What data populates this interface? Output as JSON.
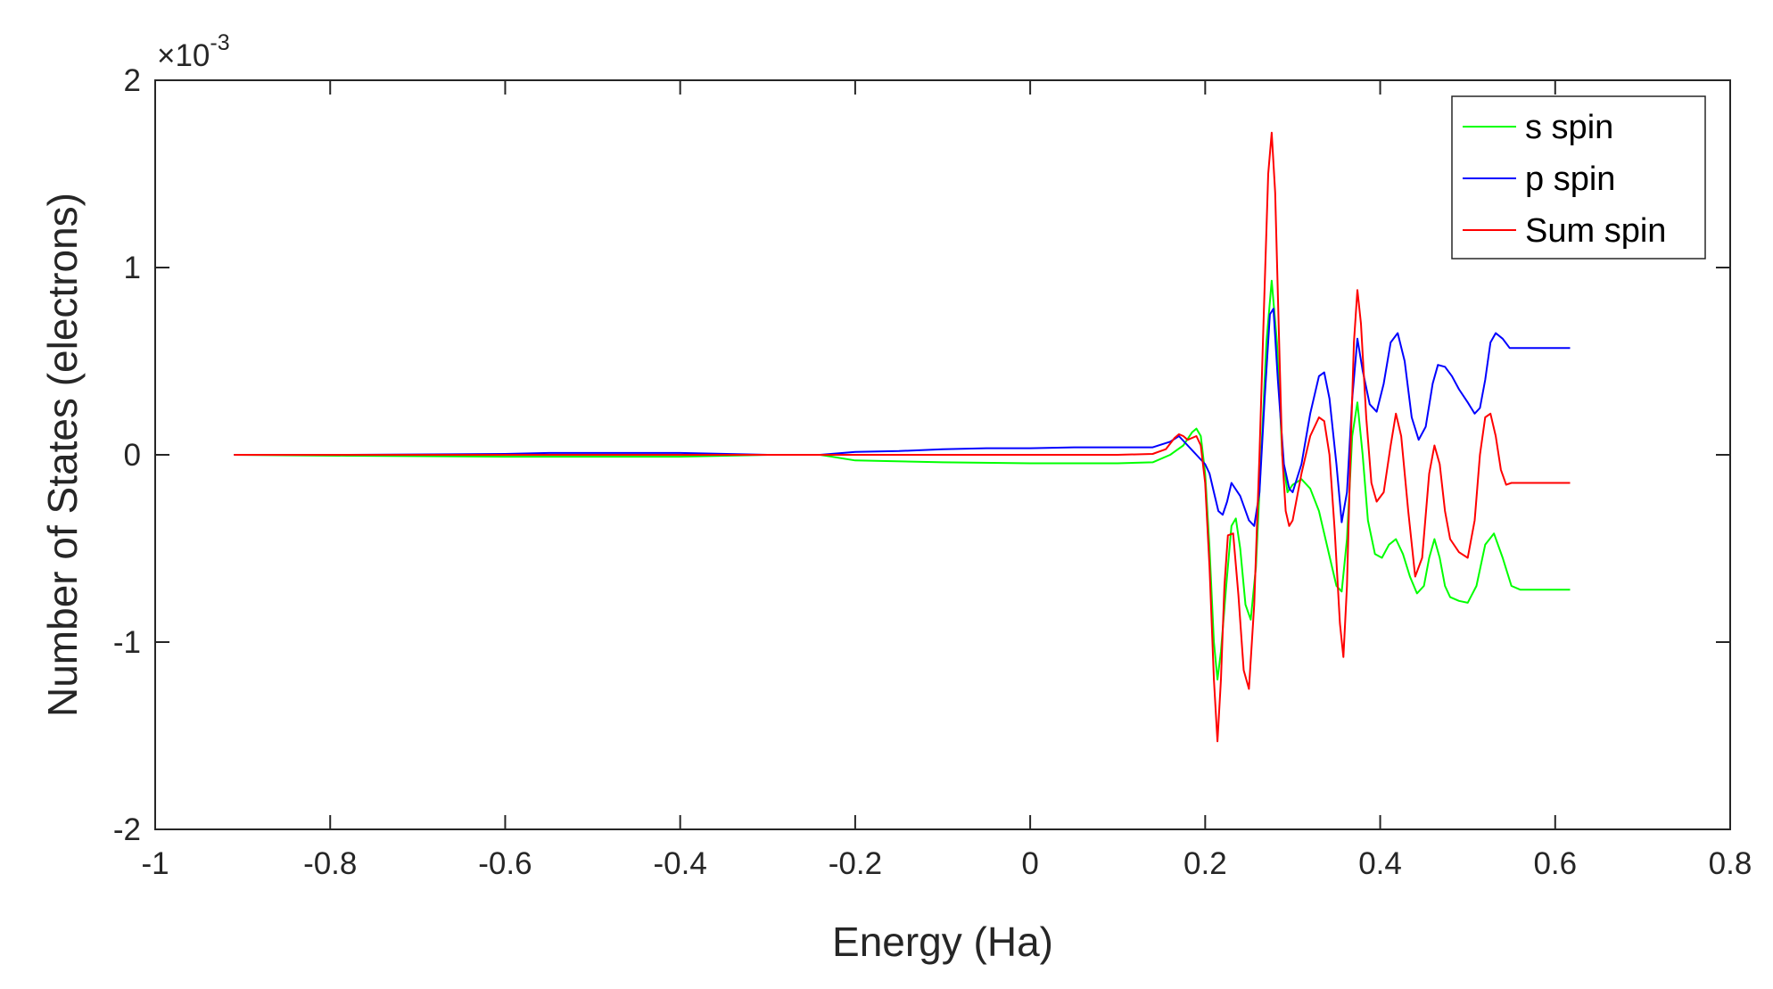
{
  "chart_data": {
    "type": "line",
    "xlabel": "Energy (Ha)",
    "ylabel": "Number of States (electrons)",
    "y_exponent_label": "×10",
    "y_exponent": "-3",
    "xlim": [
      -1,
      0.8
    ],
    "ylim": [
      -2,
      2
    ],
    "x_ticks": [
      -1,
      -0.8,
      -0.6,
      -0.4,
      -0.2,
      0,
      0.2,
      0.4,
      0.6,
      0.8
    ],
    "x_tick_labels": [
      "-1",
      "-0.8",
      "-0.6",
      "-0.4",
      "-0.2",
      "0",
      "0.2",
      "0.4",
      "0.6",
      "0.8"
    ],
    "y_ticks": [
      -2,
      -1,
      0,
      1,
      2
    ],
    "y_tick_labels": [
      "-2",
      "-1",
      "0",
      "1",
      "2"
    ],
    "grid": false,
    "legend_position": "top-right",
    "y_units_scale": "1e-3",
    "series": [
      {
        "name": "s spin",
        "color": "#00ff00",
        "x": [
          -0.91,
          -0.78,
          -0.6,
          -0.5,
          -0.4,
          -0.3,
          -0.24,
          -0.2,
          -0.1,
          0,
          0.1,
          0.14,
          0.16,
          0.175,
          0.185,
          0.19,
          0.195,
          0.2,
          0.205,
          0.21,
          0.214,
          0.218,
          0.224,
          0.23,
          0.235,
          0.24,
          0.246,
          0.252,
          0.258,
          0.264,
          0.27,
          0.276,
          0.282,
          0.288,
          0.294,
          0.3,
          0.31,
          0.32,
          0.33,
          0.34,
          0.35,
          0.356,
          0.362,
          0.368,
          0.374,
          0.38,
          0.386,
          0.394,
          0.402,
          0.41,
          0.418,
          0.426,
          0.434,
          0.442,
          0.45,
          0.456,
          0.462,
          0.468,
          0.474,
          0.48,
          0.49,
          0.5,
          0.51,
          0.52,
          0.53,
          0.54,
          0.55,
          0.56,
          0.58,
          0.617
        ],
        "y": [
          0,
          -0.005,
          -0.01,
          -0.01,
          -0.01,
          0,
          0,
          -0.03,
          -0.04,
          -0.045,
          -0.045,
          -0.04,
          0.0,
          0.05,
          0.12,
          0.14,
          0.1,
          -0.1,
          -0.5,
          -1.0,
          -1.2,
          -1.05,
          -0.7,
          -0.38,
          -0.34,
          -0.5,
          -0.8,
          -0.88,
          -0.6,
          0.0,
          0.6,
          0.93,
          0.6,
          0.0,
          -0.2,
          -0.16,
          -0.13,
          -0.18,
          -0.3,
          -0.5,
          -0.7,
          -0.73,
          -0.45,
          0.1,
          0.28,
          0.0,
          -0.35,
          -0.53,
          -0.55,
          -0.48,
          -0.45,
          -0.53,
          -0.65,
          -0.74,
          -0.7,
          -0.55,
          -0.45,
          -0.55,
          -0.7,
          -0.76,
          -0.78,
          -0.79,
          -0.7,
          -0.48,
          -0.42,
          -0.55,
          -0.7,
          -0.72,
          -0.72,
          -0.72
        ]
      },
      {
        "name": "p spin",
        "color": "#0000ff",
        "x": [
          -0.91,
          -0.78,
          -0.6,
          -0.55,
          -0.5,
          -0.45,
          -0.4,
          -0.3,
          -0.24,
          -0.2,
          -0.15,
          -0.1,
          -0.05,
          0,
          0.05,
          0.1,
          0.14,
          0.16,
          0.17,
          0.18,
          0.19,
          0.2,
          0.205,
          0.21,
          0.215,
          0.22,
          0.225,
          0.23,
          0.24,
          0.25,
          0.256,
          0.262,
          0.268,
          0.274,
          0.278,
          0.283,
          0.29,
          0.296,
          0.3,
          0.31,
          0.32,
          0.33,
          0.336,
          0.342,
          0.35,
          0.356,
          0.362,
          0.368,
          0.374,
          0.38,
          0.388,
          0.396,
          0.404,
          0.412,
          0.42,
          0.428,
          0.436,
          0.444,
          0.452,
          0.46,
          0.466,
          0.474,
          0.482,
          0.49,
          0.5,
          0.508,
          0.514,
          0.52,
          0.526,
          0.532,
          0.54,
          0.548,
          0.56,
          0.58,
          0.617
        ],
        "y": [
          0,
          0,
          0.005,
          0.01,
          0.01,
          0.01,
          0.01,
          0,
          0,
          0.015,
          0.02,
          0.03,
          0.035,
          0.035,
          0.04,
          0.04,
          0.04,
          0.07,
          0.1,
          0.05,
          0.0,
          -0.05,
          -0.1,
          -0.2,
          -0.3,
          -0.32,
          -0.25,
          -0.15,
          -0.22,
          -0.35,
          -0.38,
          -0.2,
          0.3,
          0.75,
          0.78,
          0.4,
          -0.05,
          -0.18,
          -0.2,
          -0.05,
          0.22,
          0.42,
          0.44,
          0.3,
          -0.05,
          -0.36,
          -0.2,
          0.3,
          0.62,
          0.45,
          0.27,
          0.23,
          0.38,
          0.6,
          0.65,
          0.5,
          0.2,
          0.08,
          0.15,
          0.38,
          0.48,
          0.47,
          0.42,
          0.35,
          0.28,
          0.22,
          0.25,
          0.4,
          0.6,
          0.65,
          0.62,
          0.57,
          0.57,
          0.57,
          0.57
        ]
      },
      {
        "name": "Sum spin",
        "color": "#ff0000",
        "x": [
          -0.91,
          -0.78,
          -0.6,
          -0.4,
          -0.2,
          0,
          0.1,
          0.14,
          0.155,
          0.165,
          0.17,
          0.175,
          0.18,
          0.19,
          0.195,
          0.2,
          0.205,
          0.21,
          0.214,
          0.218,
          0.222,
          0.226,
          0.232,
          0.238,
          0.244,
          0.25,
          0.256,
          0.262,
          0.268,
          0.272,
          0.276,
          0.28,
          0.284,
          0.288,
          0.292,
          0.296,
          0.3,
          0.31,
          0.32,
          0.33,
          0.336,
          0.342,
          0.348,
          0.354,
          0.358,
          0.362,
          0.366,
          0.37,
          0.374,
          0.378,
          0.384,
          0.39,
          0.396,
          0.404,
          0.412,
          0.418,
          0.424,
          0.432,
          0.44,
          0.448,
          0.456,
          0.462,
          0.468,
          0.474,
          0.48,
          0.49,
          0.5,
          0.508,
          0.514,
          0.52,
          0.526,
          0.532,
          0.538,
          0.544,
          0.55,
          0.56,
          0.58,
          0.617
        ],
        "y": [
          0,
          0,
          0,
          0,
          0,
          0,
          0,
          0.005,
          0.03,
          0.09,
          0.11,
          0.1,
          0.08,
          0.1,
          0.05,
          -0.15,
          -0.6,
          -1.2,
          -1.53,
          -1.2,
          -0.7,
          -0.43,
          -0.42,
          -0.75,
          -1.15,
          -1.25,
          -0.8,
          0.0,
          0.9,
          1.5,
          1.72,
          1.4,
          0.7,
          0.0,
          -0.3,
          -0.38,
          -0.35,
          -0.1,
          0.1,
          0.2,
          0.18,
          0.0,
          -0.4,
          -0.9,
          -1.08,
          -0.7,
          0.0,
          0.6,
          0.88,
          0.7,
          0.2,
          -0.15,
          -0.25,
          -0.2,
          0.05,
          0.22,
          0.1,
          -0.3,
          -0.65,
          -0.55,
          -0.1,
          0.05,
          -0.05,
          -0.3,
          -0.45,
          -0.52,
          -0.55,
          -0.35,
          0.0,
          0.2,
          0.22,
          0.1,
          -0.08,
          -0.16,
          -0.15,
          -0.15,
          -0.15,
          -0.15
        ]
      }
    ]
  }
}
